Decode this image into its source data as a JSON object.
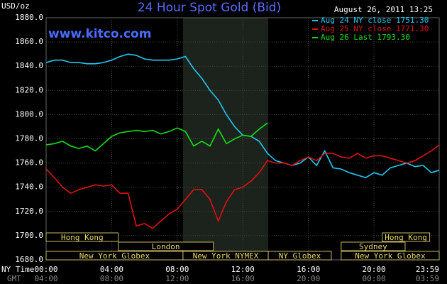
{
  "chart_data": {
    "type": "line",
    "title": "24 Hour Spot Gold (Bid)",
    "unit_label": "USD/oz",
    "date_label": "August 26, 2011 13:25",
    "watermark": "www.kitco.com",
    "x_row_label": "NY Time",
    "x2_row_label": "GMT",
    "x2_labels": [
      "04:00",
      "08:00",
      "12:00",
      "16:00",
      "20:00",
      "00:00",
      "03:59"
    ],
    "x": [
      0,
      0.5,
      1,
      1.5,
      2,
      2.5,
      3,
      3.5,
      4,
      4.5,
      5,
      5.5,
      6,
      6.5,
      7,
      7.5,
      8,
      8.5,
      9,
      9.5,
      10,
      10.5,
      11,
      11.5,
      12,
      12.5,
      13,
      13.5,
      14,
      14.5,
      15,
      15.5,
      16,
      16.5,
      17,
      17.5,
      18,
      18.5,
      19,
      19.5,
      20,
      20.5,
      21,
      21.5,
      22,
      22.5,
      23,
      23.5,
      23.98
    ],
    "series": [
      {
        "name": "Aug 24 NY close 1751.30",
        "color": "#20c8f0",
        "values": [
          1843,
          1845,
          1845,
          1843,
          1843,
          1842,
          1842,
          1843,
          1845,
          1848,
          1850,
          1849,
          1846,
          1845,
          1845,
          1845,
          1846,
          1848,
          1838,
          1830,
          1820,
          1812,
          1800,
          1790,
          1783,
          1782,
          1778,
          1768,
          1762,
          1760,
          1758,
          1760,
          1765,
          1758,
          1770,
          1756,
          1755,
          1752,
          1750,
          1748,
          1752,
          1750,
          1756,
          1758,
          1760,
          1757,
          1758,
          1752,
          1754
        ]
      },
      {
        "name": "Aug 25 NY close 1771.30",
        "color": "#e01010",
        "values": [
          1755,
          1748,
          1740,
          1735,
          1738,
          1740,
          1742,
          1741,
          1742,
          1735,
          1735,
          1708,
          1710,
          1706,
          1712,
          1718,
          1722,
          1730,
          1738,
          1738,
          1730,
          1712,
          1728,
          1738,
          1740,
          1745,
          1752,
          1762,
          1760,
          1760,
          1758,
          1762,
          1765,
          1762,
          1768,
          1768,
          1765,
          1764,
          1768,
          1764,
          1766,
          1766,
          1764,
          1762,
          1760,
          1762,
          1766,
          1770,
          1775
        ]
      },
      {
        "name": "Aug 26 Last 1793.30",
        "color": "#10e010",
        "values": [
          1775,
          1776,
          1778,
          1774,
          1772,
          1774,
          1770,
          1776,
          1782,
          1785,
          1786,
          1787,
          1786,
          1787,
          1784,
          1786,
          1789,
          1786,
          1774,
          1778,
          1774,
          1788,
          1776,
          1780,
          1783,
          1782,
          1788,
          1793,
          null,
          null,
          null,
          null,
          null,
          null,
          null,
          null,
          null,
          null,
          null,
          null,
          null,
          null,
          null,
          null,
          null,
          null,
          null,
          null,
          null
        ]
      }
    ],
    "xlim": [
      0,
      23.98
    ],
    "xticks": [
      {
        "value": 0,
        "label": "00:00"
      },
      {
        "value": 4,
        "label": "04:00"
      },
      {
        "value": 8,
        "label": "08:00"
      },
      {
        "value": 12,
        "label": "12:00"
      },
      {
        "value": 16,
        "label": "16:00"
      },
      {
        "value": 20,
        "label": "20:00"
      },
      {
        "value": 23.98,
        "label": "23:59"
      }
    ],
    "ylim": [
      1680,
      1880
    ],
    "yticks": [
      {
        "value": 1680,
        "label": "1680.0"
      },
      {
        "value": 1700,
        "label": "1700.0"
      },
      {
        "value": 1720,
        "label": "1720.0"
      },
      {
        "value": 1740,
        "label": "1740.0"
      },
      {
        "value": 1760,
        "label": "1760.0"
      },
      {
        "value": 1780,
        "label": "1780.0"
      },
      {
        "value": 1800,
        "label": "1800.0"
      },
      {
        "value": 1820,
        "label": "1820.0"
      },
      {
        "value": 1840,
        "label": "1840.0"
      },
      {
        "value": 1860,
        "label": "1860.0"
      },
      {
        "value": 1880,
        "label": "1880.0"
      }
    ],
    "grid": true,
    "sessions": [
      [
        {
          "label": "Hong Kong",
          "start": 0,
          "end": 4.4
        },
        {
          "label": "Hong Kong",
          "start": 20.5,
          "end": 23.4
        }
      ],
      [
        {
          "label": "London",
          "start": 4.4,
          "end": 10.2
        },
        {
          "label": "Sydney",
          "start": 18,
          "end": 21.9
        }
      ],
      [
        {
          "label": "New York Globex",
          "start": 0,
          "end": 8.35
        },
        {
          "label": "New York NYMEX",
          "start": 8.35,
          "end": 13.55
        },
        {
          "label": "NY Globex",
          "start": 13.55,
          "end": 17.4
        },
        {
          "label": "New York Globex",
          "start": 18,
          "end": 23.98
        }
      ]
    ]
  }
}
